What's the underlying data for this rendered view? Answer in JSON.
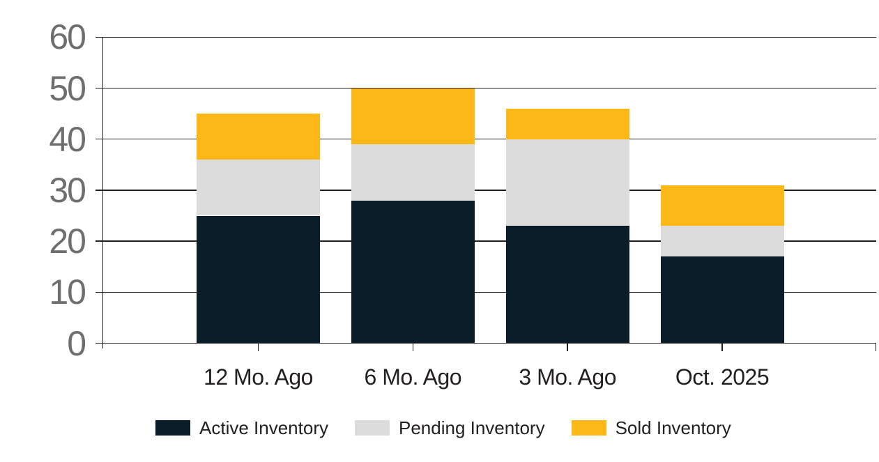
{
  "chart_data": {
    "type": "bar",
    "stacked": true,
    "categories": [
      "12 Mo. Ago",
      "6 Mo. Ago",
      "3 Mo. Ago",
      "Oct. 2025"
    ],
    "series": [
      {
        "name": "Active Inventory",
        "color": "#0b1d29",
        "values": [
          25,
          28,
          23,
          17
        ]
      },
      {
        "name": "Pending Inventory",
        "color": "#dcdcdd",
        "values": [
          11,
          11,
          17,
          6
        ]
      },
      {
        "name": "Sold Inventory",
        "color": "#fbb817",
        "values": [
          9,
          11,
          6,
          8
        ]
      }
    ],
    "stack_totals": [
      45,
      50,
      46,
      31
    ],
    "ylim": [
      0,
      60
    ],
    "ytick_interval": 10,
    "ytick_labels": [
      "0",
      "10",
      "20",
      "30",
      "40",
      "50",
      "60"
    ],
    "xlabel": "",
    "ylabel": "",
    "title": "",
    "grid": true,
    "legend_position": "bottom",
    "colors": {
      "axis": "#231f20",
      "gridline": "#231f20",
      "ytick_label": "#6d6e70",
      "text": "#231f20",
      "background": "#ffffff"
    }
  }
}
